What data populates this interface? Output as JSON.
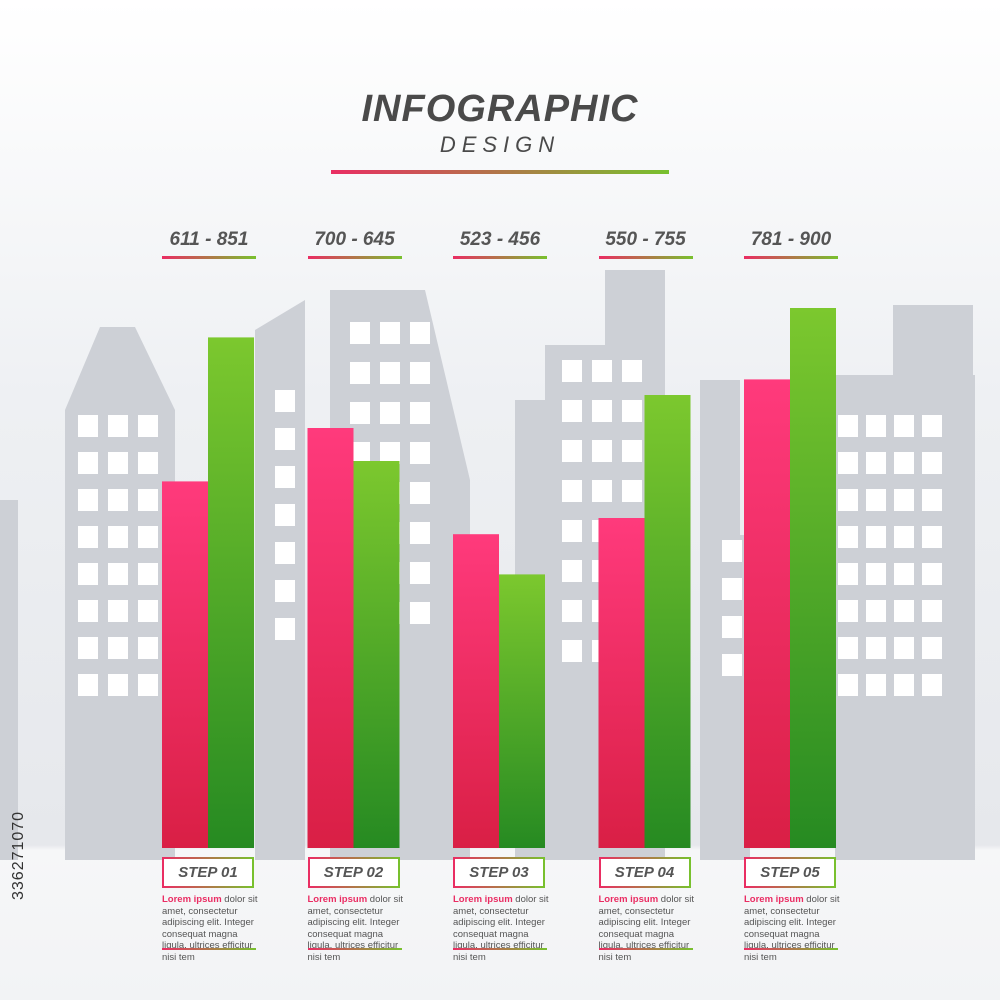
{
  "header": {
    "title": "INFOGRAPHIC",
    "subtitle": "DESIGN"
  },
  "colors": {
    "pink": "#ea2d63",
    "green": "#6cbd2b",
    "building": "#cdd0d6"
  },
  "watermark": "336271070",
  "lorem": {
    "lead": "Lorem ipsum",
    "body": " dolor sit amet, consectetur adipiscing elit. Integer consequat magna ligula, ultrices efficitur nisi tem"
  },
  "chart_data": {
    "type": "bar",
    "categories": [
      "STEP 01",
      "STEP 02",
      "STEP 03",
      "STEP 04",
      "STEP 05"
    ],
    "range_labels": [
      "611 - 851",
      "700 - 645",
      "523 - 456",
      "550 - 755",
      "781 - 900"
    ],
    "series": [
      {
        "values": [
          611,
          700,
          523,
          550,
          781
        ]
      },
      {
        "values": [
          851,
          645,
          456,
          755,
          900
        ]
      }
    ],
    "ylim": [
      0,
      1000
    ]
  }
}
